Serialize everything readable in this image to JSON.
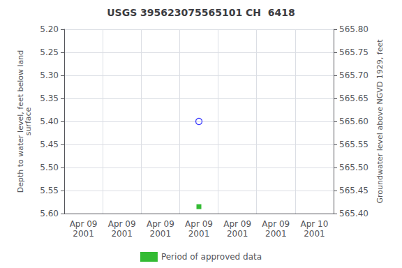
{
  "chart_data": {
    "type": "scatter",
    "title": "USGS 395623075565101 CH  6418",
    "ylabel": "Depth to water level, feet below land\nsurface",
    "y2label": "Groundwater level above NGVD 1929, feet",
    "categories": [
      "Apr 09\n2001",
      "Apr 09\n2001",
      "Apr 09\n2001",
      "Apr 09\n2001",
      "Apr 09\n2001",
      "Apr 09\n2001",
      "Apr 10\n2001"
    ],
    "series": [
      {
        "color": "blue",
        "marker": "open_circle",
        "values": [
          null,
          null,
          null,
          5.4,
          null,
          null,
          null
        ]
      },
      {
        "name": "Period of approved data",
        "color": "#00aa00",
        "marker": "square",
        "values": [
          null,
          null,
          null,
          5.585,
          null,
          null,
          null
        ]
      }
    ],
    "ylim": [
      5.6,
      5.2
    ],
    "yticks": [
      {
        "value": 5.2,
        "label": "5.20"
      },
      5.25,
      {
        "value": 5.3,
        "label": "5.30"
      },
      5.35,
      {
        "value": 5.4,
        "label": "5.40"
      },
      5.45,
      {
        "value": 5.5,
        "label": "5.50"
      },
      5.55,
      {
        "value": 5.6,
        "label": "5.60"
      }
    ],
    "y2lim": [
      565.4,
      565.8
    ],
    "y2ticks": [
      {
        "value": 565.8,
        "label": "565.80"
      },
      565.75,
      {
        "value": 565.7,
        "label": "565.70"
      },
      565.65,
      {
        "value": 565.6,
        "label": "565.60"
      },
      565.55,
      {
        "value": 565.5,
        "label": "565.50"
      },
      565.45,
      {
        "value": 565.4,
        "label": "565.40"
      }
    ],
    "grid": true,
    "legend": "bottom"
  }
}
